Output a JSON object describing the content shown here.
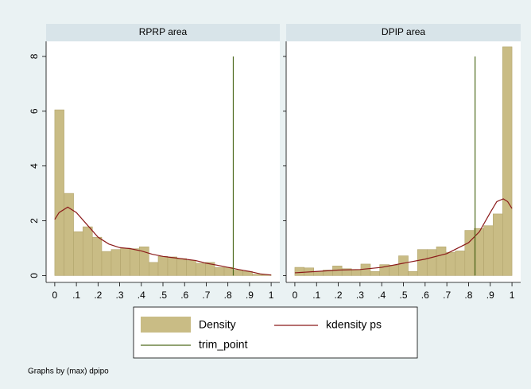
{
  "legend": [
    {
      "name": "Density",
      "color": "#c9bc85"
    },
    {
      "name": "kdensity ps",
      "color": "#8b1a1a"
    },
    {
      "name": "trim_point",
      "color": "#4f6b1f"
    }
  ],
  "note": "Graphs by (max) dpipo",
  "chart_data": [
    {
      "type": "histogram",
      "title": "RPRP area",
      "bins": [
        0,
        0.043,
        0.087,
        0.13,
        0.174,
        0.217,
        0.261,
        0.304,
        0.348,
        0.391,
        0.435,
        0.478,
        0.522,
        0.565,
        0.609,
        0.652,
        0.696,
        0.739,
        0.783,
        0.826,
        0.87,
        0.913,
        0.957,
        1
      ],
      "values": [
        6.05,
        3.0,
        1.6,
        1.78,
        1.4,
        0.88,
        0.95,
        1.0,
        0.98,
        1.05,
        0.48,
        0.7,
        0.68,
        0.62,
        0.55,
        0.45,
        0.48,
        0.3,
        0.3,
        0.2,
        0.15,
        0.05,
        0.03
      ],
      "kdensity": {
        "x": [
          0,
          0.02,
          0.06,
          0.1,
          0.15,
          0.2,
          0.25,
          0.3,
          0.35,
          0.4,
          0.45,
          0.5,
          0.55,
          0.6,
          0.65,
          0.7,
          0.75,
          0.8,
          0.85,
          0.9,
          0.95,
          1
        ],
        "y": [
          2.05,
          2.3,
          2.5,
          2.3,
          1.85,
          1.4,
          1.15,
          1.02,
          0.98,
          0.9,
          0.78,
          0.7,
          0.65,
          0.6,
          0.55,
          0.45,
          0.38,
          0.3,
          0.22,
          0.15,
          0.06,
          0.02
        ]
      },
      "trim_point": 0.825,
      "xlim": [
        -0.04,
        1.04
      ],
      "ylim": [
        -0.25,
        8.55
      ],
      "xticks": [
        0,
        {
          "value": 0.1,
          "label": ".1"
        },
        {
          "value": 0.2,
          "label": ".2"
        },
        {
          "value": 0.3,
          "label": ".3"
        },
        {
          "value": 0.4,
          "label": ".4"
        },
        {
          "value": 0.5,
          "label": ".5"
        },
        {
          "value": 0.6,
          "label": ".6"
        },
        {
          "value": 0.7,
          "label": ".7"
        },
        {
          "value": 0.8,
          "label": ".8"
        },
        {
          "value": 0.9,
          "label": ".9"
        },
        1
      ],
      "yticks": [
        0,
        2,
        4,
        6,
        8
      ]
    },
    {
      "type": "histogram",
      "title": "DPIP area",
      "bins": [
        0,
        0.043,
        0.087,
        0.13,
        0.174,
        0.217,
        0.261,
        0.304,
        0.348,
        0.391,
        0.435,
        0.478,
        0.522,
        0.565,
        0.609,
        0.652,
        0.696,
        0.739,
        0.783,
        0.826,
        0.87,
        0.913,
        0.957,
        1
      ],
      "values": [
        0.3,
        0.28,
        0.15,
        0.2,
        0.35,
        0.25,
        0.22,
        0.42,
        0.15,
        0.4,
        0.38,
        0.72,
        0.15,
        0.95,
        0.95,
        1.05,
        0.85,
        0.9,
        1.65,
        1.72,
        1.82,
        2.25,
        8.35
      ],
      "kdensity": {
        "x": [
          0,
          0.1,
          0.2,
          0.3,
          0.4,
          0.5,
          0.6,
          0.7,
          0.8,
          0.85,
          0.9,
          0.93,
          0.96,
          0.98,
          1
        ],
        "y": [
          0.1,
          0.15,
          0.2,
          0.22,
          0.3,
          0.45,
          0.6,
          0.8,
          1.2,
          1.6,
          2.3,
          2.7,
          2.8,
          2.7,
          2.45
        ]
      },
      "trim_point": 0.83,
      "xlim": [
        -0.04,
        1.04
      ],
      "ylim": [
        -0.25,
        8.55
      ],
      "xticks": [
        0,
        {
          "value": 0.1,
          "label": ".1"
        },
        {
          "value": 0.2,
          "label": ".2"
        },
        {
          "value": 0.3,
          "label": ".3"
        },
        {
          "value": 0.4,
          "label": ".4"
        },
        {
          "value": 0.5,
          "label": ".5"
        },
        {
          "value": 0.6,
          "label": ".6"
        },
        {
          "value": 0.7,
          "label": ".7"
        },
        {
          "value": 0.8,
          "label": ".8"
        },
        {
          "value": 0.9,
          "label": ".9"
        },
        1
      ],
      "yticks": [
        0,
        2,
        4,
        6,
        8
      ]
    }
  ]
}
